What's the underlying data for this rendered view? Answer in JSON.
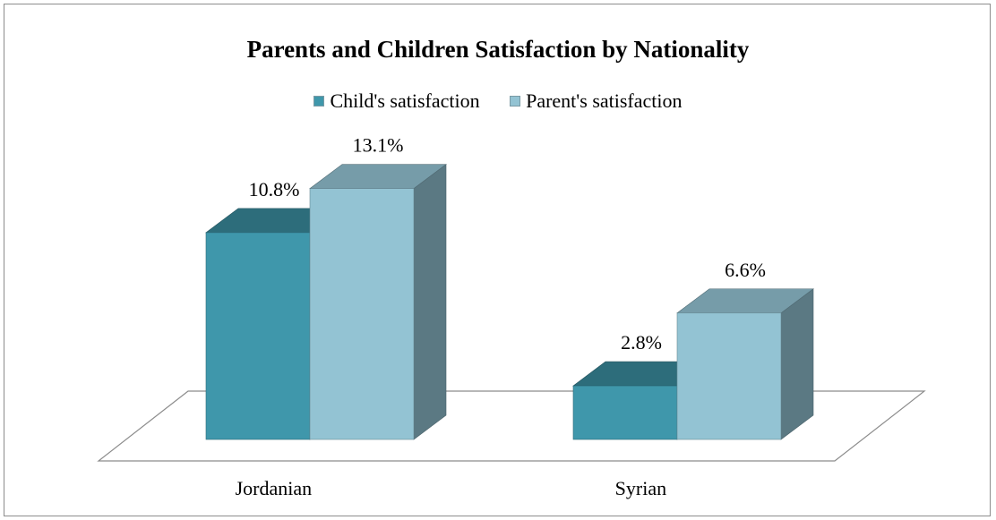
{
  "chart_data": {
    "type": "bar",
    "title": "Parents and Children  Satisfaction by Nationality",
    "categories": [
      "Jordanian",
      "Syrian"
    ],
    "series": [
      {
        "name": "Child's satisfaction",
        "values": [
          10.8,
          2.8
        ],
        "labels": [
          "10.8%",
          "2.8%"
        ],
        "color": "#3f97ab"
      },
      {
        "name": "Parent's satisfaction",
        "values": [
          13.1,
          6.6
        ],
        "labels": [
          "13.1%",
          "6.6%"
        ],
        "color": "#93c3d3"
      }
    ],
    "ylim": [
      0,
      13.1
    ],
    "unit": "%",
    "grid": false,
    "legend_position": "top",
    "style": "3d-column"
  }
}
